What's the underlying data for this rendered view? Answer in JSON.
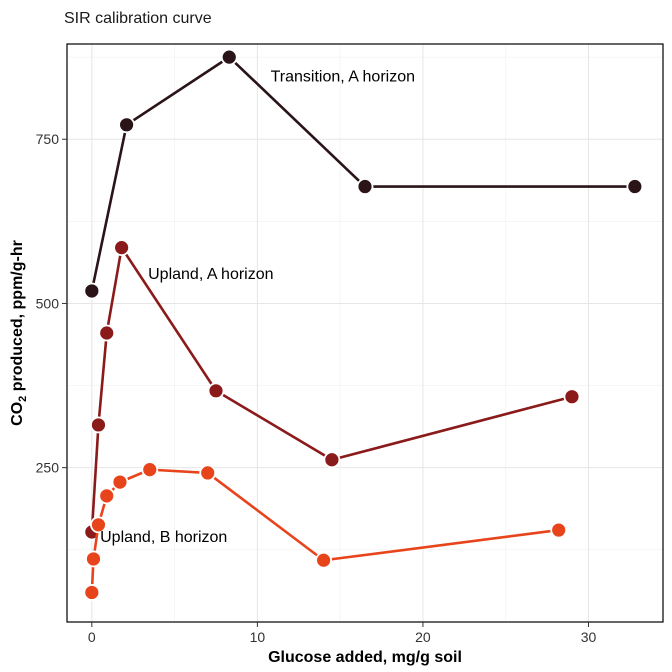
{
  "chart_data": {
    "type": "line",
    "title": "SIR calibration curve",
    "xlabel": "Glucose added, mg/g soil",
    "ylabel": {
      "main": "CO",
      "sub": "2",
      "rest": " produced, ppm/g-hr"
    },
    "xlim": [
      -1.5,
      34.5
    ],
    "ylim": [
      15,
      895
    ],
    "x_ticks": [
      0,
      10,
      20,
      30
    ],
    "y_ticks": [
      250,
      500,
      750
    ],
    "grid": true,
    "legend": "none",
    "series": [
      {
        "name": "Transition, A horizon",
        "color": "#2a1418",
        "x": [
          0,
          2.1,
          8.3,
          16.5,
          32.8
        ],
        "y": [
          519,
          772,
          875,
          678,
          678
        ],
        "label_anchor": [
          10.8,
          838
        ]
      },
      {
        "name": "Upland, A horizon",
        "color": "#8b1a1a",
        "x": [
          0,
          0.4,
          0.9,
          1.8,
          7.5,
          14.5,
          29
        ],
        "y": [
          152,
          315,
          455,
          585,
          367,
          262,
          358
        ],
        "label_anchor": [
          3.4,
          537
        ]
      },
      {
        "name": "Upland, B horizon",
        "color": "#e8441c",
        "x": [
          0,
          0.1,
          0.4,
          0.9,
          1.7,
          3.5,
          7,
          14,
          28.2
        ],
        "y": [
          60,
          111,
          163,
          207,
          228,
          247,
          242,
          109,
          155
        ],
        "label_anchor": [
          0.5,
          137
        ]
      }
    ]
  }
}
